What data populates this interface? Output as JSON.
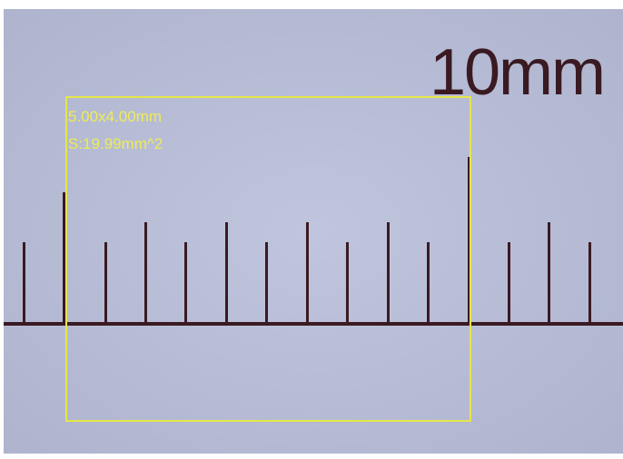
{
  "ruler": {
    "label": "10mm"
  },
  "measurement": {
    "dimensions": "5.00x4.00mm",
    "area": "S:19.99mm^2"
  }
}
